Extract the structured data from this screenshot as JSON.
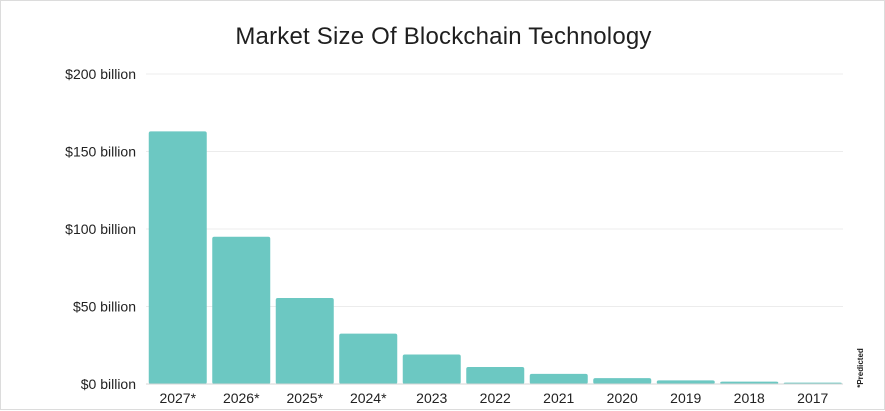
{
  "chart_data": {
    "type": "bar",
    "title": "Market Size Of Blockchain Technology",
    "xlabel": "",
    "ylabel": "",
    "categories": [
      "2027*",
      "2026*",
      "2025*",
      "2024*",
      "2023",
      "2022",
      "2021",
      "2020",
      "2019",
      "2018",
      "2017"
    ],
    "values": [
      163,
      95,
      55.5,
      32.5,
      19,
      11,
      6.5,
      3.8,
      2.3,
      1.5,
      0.9
    ],
    "unit": "billion USD",
    "ylim": [
      0,
      200
    ],
    "yticks": [
      0,
      50,
      100,
      150,
      200
    ],
    "ytick_labels": [
      "$0 billion",
      "$50 billion",
      "$100 billion",
      "$150 billion",
      "$200 billion"
    ],
    "grid": true,
    "bar_color": "#6cc8c2",
    "footnote": "*Predicted"
  }
}
